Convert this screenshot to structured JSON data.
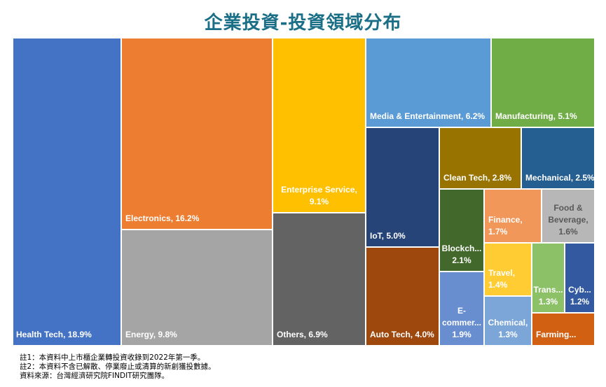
{
  "title": "企業投資-投資領域分布",
  "notes": [
    "註1：本資料中上市櫃企業轉投資收錄到2022年第一季。",
    "註2：本資料不含已解散、停業廢止或清算的新創獲投數據。",
    "資料來源：台灣經濟研究院FINDIT研究團隊。"
  ],
  "chart_data": {
    "type": "treemap",
    "title": "企業投資-投資領域分布",
    "unit": "%",
    "items": [
      {
        "name": "Health Tech",
        "value": 18.9,
        "label": "Health Tech, 18.9%",
        "color": "#4472c4"
      },
      {
        "name": "Electronics",
        "value": 16.2,
        "label": "Electronics, 16.2%",
        "color": "#ed7d31"
      },
      {
        "name": "Energy",
        "value": 9.8,
        "label": "Energy, 9.8%",
        "color": "#a5a5a5"
      },
      {
        "name": "Enterprise Service",
        "value": 9.1,
        "label": "Enterprise Service,\n9.1%",
        "color": "#ffc000"
      },
      {
        "name": "Others",
        "value": 6.9,
        "label": "Others, 6.9%",
        "color": "#636363"
      },
      {
        "name": "Media & Entertainment",
        "value": 6.2,
        "label": "Media & Entertainment, 6.2%",
        "color": "#5b9bd5"
      },
      {
        "name": "Manufacturing",
        "value": 5.1,
        "label": "Manufacturing, 5.1%",
        "color": "#70ad47"
      },
      {
        "name": "IoT",
        "value": 5.0,
        "label": "IoT, 5.0%",
        "color": "#264478"
      },
      {
        "name": "Auto Tech",
        "value": 4.0,
        "label": "Auto Tech, 4.0%",
        "color": "#9e480e"
      },
      {
        "name": "Clean Tech",
        "value": 2.8,
        "label": "Clean Tech, 2.8%",
        "color": "#997300"
      },
      {
        "name": "Mechanical",
        "value": 2.5,
        "label": "Mechanical, 2.5%",
        "color": "#255e91"
      },
      {
        "name": "Blockchain",
        "value": 2.1,
        "label": "Blockch...\n2.1%",
        "color": "#43682b"
      },
      {
        "name": "Finance",
        "value": 1.7,
        "label": "Finance,\n1.7%",
        "color": "#f1975a"
      },
      {
        "name": "Food & Beverage",
        "value": 1.6,
        "label": "Food &\nBeverage,\n1.6%",
        "color": "#b7b7b7"
      },
      {
        "name": "E-commerce",
        "value": 1.9,
        "label": "E-\ncommer...\n1.9%",
        "color": "#698ed0"
      },
      {
        "name": "Travel",
        "value": 1.4,
        "label": "Travel,\n1.4%",
        "color": "#ffcd33"
      },
      {
        "name": "Transportation",
        "value": 1.3,
        "label": "Trans...\n1.3%",
        "color": "#8cc168"
      },
      {
        "name": "Cybersecurity",
        "value": 1.2,
        "label": "Cyb...\n1.2%",
        "color": "#335aa1"
      },
      {
        "name": "Chemical",
        "value": 1.3,
        "label": "Chemical,\n1.3%",
        "color": "#7ca6d8"
      },
      {
        "name": "Farming",
        "value": null,
        "label": "Farming...",
        "color": "#d26012"
      }
    ]
  }
}
